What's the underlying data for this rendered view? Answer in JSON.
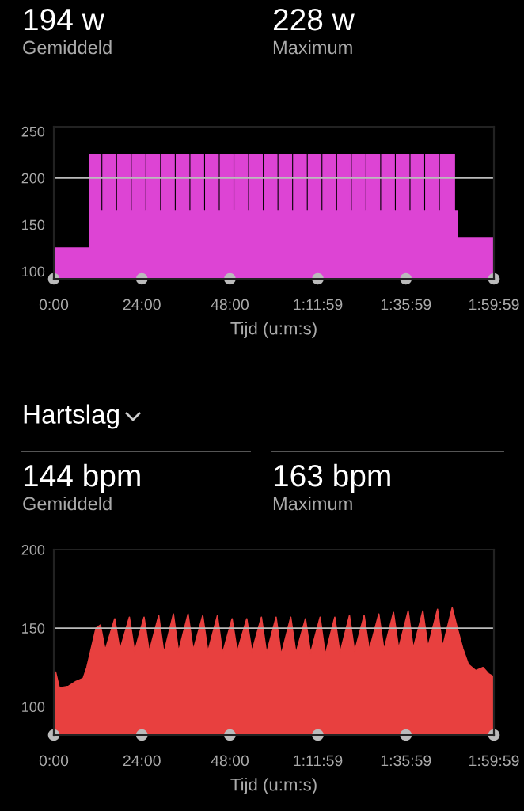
{
  "chart_data": [
    {
      "type": "area",
      "annotations": [
        "194 w",
        "Gemiddeld",
        "228 w",
        "Maximum"
      ],
      "xlabel": "Tijd (u:m:s)",
      "x": [
        0,
        9.8,
        9.8,
        12.8,
        12.8,
        13.4,
        13.4,
        16.8,
        16.8,
        17.4,
        17.4,
        20.8,
        20.8,
        21.4,
        21.4,
        24.8,
        24.8,
        25.4,
        25.4,
        28.8,
        28.8,
        29.4,
        29.4,
        32.8,
        32.8,
        33.4,
        33.4,
        36.8,
        36.8,
        37.4,
        37.4,
        40.8,
        40.8,
        41.4,
        41.4,
        44.8,
        44.8,
        45.4,
        45.4,
        48.8,
        48.8,
        49.4,
        49.4,
        52.8,
        52.8,
        53.4,
        53.4,
        56.8,
        56.8,
        57.4,
        57.4,
        60.8,
        60.8,
        61.4,
        61.4,
        64.8,
        64.8,
        65.4,
        65.4,
        68.8,
        68.8,
        69.4,
        69.4,
        72.8,
        72.8,
        73.4,
        73.4,
        76.8,
        76.8,
        77.4,
        77.4,
        80.8,
        80.8,
        81.4,
        81.4,
        84.8,
        84.8,
        85.4,
        85.4,
        88.8,
        88.8,
        89.4,
        89.4,
        92.8,
        92.8,
        93.4,
        93.4,
        96.8,
        96.8,
        97.4,
        97.4,
        100.8,
        100.8,
        101.4,
        101.4,
        104.8,
        104.8,
        105.4,
        105.4,
        109.2,
        109.2,
        110,
        110,
        119.98
      ],
      "values": [
        125,
        125,
        225,
        225,
        165,
        165,
        225,
        225,
        165,
        165,
        225,
        225,
        165,
        165,
        225,
        225,
        165,
        165,
        225,
        225,
        165,
        165,
        225,
        225,
        165,
        165,
        225,
        225,
        165,
        165,
        225,
        225,
        165,
        165,
        225,
        225,
        165,
        165,
        225,
        225,
        165,
        165,
        225,
        225,
        165,
        165,
        225,
        225,
        165,
        165,
        225,
        225,
        165,
        165,
        225,
        225,
        165,
        165,
        225,
        225,
        165,
        165,
        225,
        225,
        165,
        165,
        225,
        225,
        165,
        165,
        225,
        225,
        165,
        165,
        225,
        225,
        165,
        165,
        225,
        225,
        165,
        165,
        225,
        225,
        165,
        165,
        225,
        225,
        165,
        165,
        225,
        225,
        165,
        165,
        225,
        225,
        165,
        165,
        225,
        225,
        165,
        165,
        136,
        136
      ],
      "color": "#dd44d4",
      "xlim": [
        0,
        119.98
      ],
      "ylim": [
        92,
        255
      ],
      "xticks": [
        {
          "value": 0,
          "label": "0:00"
        },
        {
          "value": 24,
          "label": "24:00"
        },
        {
          "value": 48,
          "label": "48:00"
        },
        {
          "value": 71.98,
          "label": "1:11:59"
        },
        {
          "value": 95.98,
          "label": "1:35:59"
        },
        {
          "value": 119.98,
          "label": "1:59:59"
        }
      ],
      "yticks": [
        100,
        150,
        200,
        250
      ],
      "ref_lines": [
        {
          "axis": "y",
          "value": 200,
          "color": "#bbbbbb"
        }
      ],
      "grid": false,
      "legend": false
    },
    {
      "type": "area",
      "title": "Hartslag",
      "annotations": [
        "144 bpm",
        "Gemiddeld",
        "163 bpm",
        "Maximum"
      ],
      "xlabel": "Tijd (u:m:s)",
      "x": [
        0,
        0.5,
        1.5,
        4,
        6,
        8,
        9,
        10.5,
        11.5,
        12.7,
        14,
        16.6,
        18,
        20.6,
        22,
        24.6,
        26,
        28.6,
        30,
        32.6,
        34,
        36.6,
        38,
        40.6,
        42,
        44.6,
        46,
        48.6,
        50,
        52.6,
        54,
        56.6,
        58,
        60.6,
        62,
        64.6,
        66,
        68.6,
        70,
        72.6,
        74,
        76.6,
        78,
        80.6,
        82,
        84.6,
        86,
        88.6,
        90,
        92.6,
        94,
        96.6,
        98,
        100.6,
        102,
        104.6,
        106,
        108.6,
        110,
        111.5,
        113,
        115,
        117,
        118.5,
        119.98
      ],
      "values": [
        108,
        122,
        112,
        113,
        116,
        118,
        125,
        140,
        150,
        152,
        136,
        156,
        136,
        157,
        135,
        157,
        135,
        158,
        134,
        159,
        135,
        159,
        136,
        158,
        135,
        158,
        134,
        156,
        135,
        156,
        135,
        157,
        134,
        157,
        133,
        157,
        134,
        156,
        134,
        157,
        133,
        157,
        134,
        158,
        135,
        158,
        136,
        159,
        136,
        160,
        137,
        161,
        137,
        161,
        138,
        162,
        138,
        163,
        150,
        137,
        127,
        123,
        125,
        121,
        119
      ],
      "color": "#e8403f",
      "xlim": [
        0,
        119.98
      ],
      "ylim": [
        82,
        200
      ],
      "xticks": [
        {
          "value": 0,
          "label": "0:00"
        },
        {
          "value": 24,
          "label": "24:00"
        },
        {
          "value": 48,
          "label": "48:00"
        },
        {
          "value": 71.98,
          "label": "1:11:59"
        },
        {
          "value": 95.98,
          "label": "1:35:59"
        },
        {
          "value": 119.98,
          "label": "1:59:59"
        }
      ],
      "yticks": [
        100,
        150,
        200
      ],
      "ref_lines": [
        {
          "axis": "y",
          "value": 150,
          "color": "#bbbbbb"
        }
      ],
      "grid": false,
      "legend": false
    }
  ]
}
